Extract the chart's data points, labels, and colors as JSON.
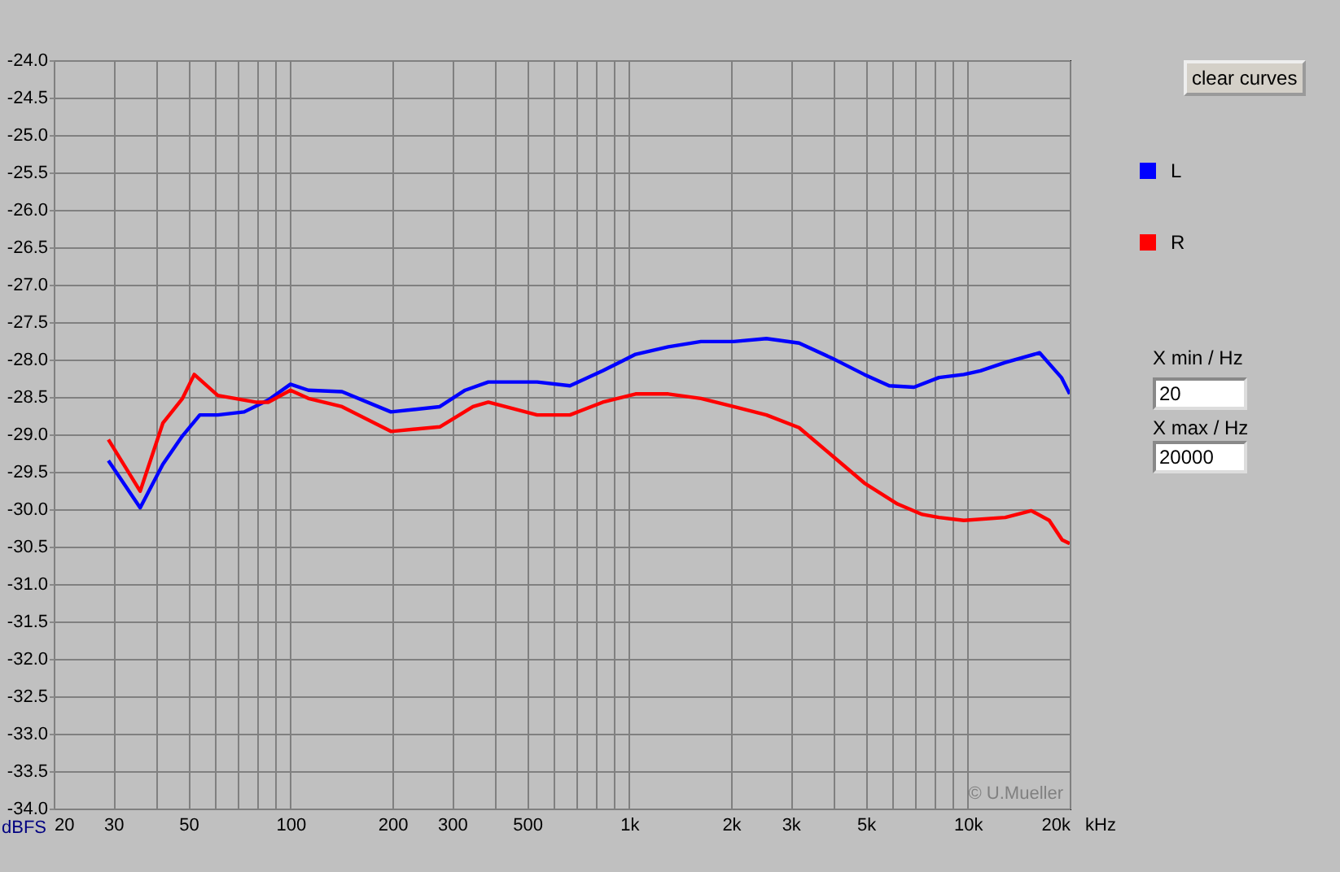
{
  "chart_data": {
    "type": "line",
    "ylabel": "dBFS",
    "log": "x",
    "grid": true,
    "legend": "right",
    "marker": "none",
    "line_style": "solid",
    "xlim": [
      20,
      20000
    ],
    "ylim": [
      -34,
      -24
    ],
    "xticks": [
      20,
      30,
      {
        "value": 40,
        "label": null
      },
      50,
      {
        "value": 60,
        "label": null
      },
      {
        "value": 70,
        "label": null
      },
      {
        "value": 80,
        "label": null
      },
      {
        "value": 90,
        "label": null
      },
      100,
      200,
      300,
      {
        "value": 400,
        "label": null
      },
      500,
      {
        "value": 600,
        "label": null
      },
      {
        "value": 700,
        "label": null
      },
      {
        "value": 800,
        "label": null
      },
      {
        "value": 900,
        "label": null
      },
      {
        "value": 1000,
        "label": "1k"
      },
      {
        "value": 2000,
        "label": "2k"
      },
      {
        "value": 3000,
        "label": "3k"
      },
      {
        "value": 4000,
        "label": null
      },
      {
        "value": 5000,
        "label": "5k"
      },
      {
        "value": 6000,
        "label": null
      },
      {
        "value": 7000,
        "label": null
      },
      {
        "value": 8000,
        "label": null
      },
      {
        "value": 9000,
        "label": null
      },
      {
        "value": 10000,
        "label": "10k"
      },
      {
        "value": 20000,
        "label": "20k"
      }
    ],
    "xlabel": "kHz",
    "yticks": [
      {
        "value": -24,
        "label": "-24.0"
      },
      {
        "value": -24.5,
        "label": "-24.5"
      },
      {
        "value": -25,
        "label": "-25.0"
      },
      {
        "value": -25.5,
        "label": "-25.5"
      },
      {
        "value": -26,
        "label": "-26.0"
      },
      {
        "value": -26.5,
        "label": "-26.5"
      },
      {
        "value": -27,
        "label": "-27.0"
      },
      {
        "value": -27.5,
        "label": "-27.5"
      },
      {
        "value": -28,
        "label": "-28.0"
      },
      {
        "value": -28.5,
        "label": "-28.5"
      },
      {
        "value": -29,
        "label": "-29.0"
      },
      {
        "value": -29.5,
        "label": "-29.5"
      },
      {
        "value": -30,
        "label": "-30.0"
      },
      {
        "value": -30.5,
        "label": "-30.5"
      },
      {
        "value": -31,
        "label": "-31.0"
      },
      {
        "value": -31.5,
        "label": "-31.5"
      },
      {
        "value": -32,
        "label": "-32.0"
      },
      {
        "value": -32.5,
        "label": "-32.5"
      },
      {
        "value": -33,
        "label": "-33.0"
      },
      {
        "value": -33.5,
        "label": "-33.5"
      },
      {
        "value": -34,
        "label": "-34.0"
      }
    ],
    "series": [
      {
        "name": "L",
        "color": "#0000ff",
        "x": [
          29,
          36,
          42,
          48,
          54,
          61,
          73,
          86,
          100,
          113,
          142,
          198,
          276,
          328,
          384,
          535,
          669,
          836,
          1045,
          1305,
          1630,
          2036,
          2543,
          3176,
          3966,
          4950,
          5862,
          6940,
          8220,
          9730,
          10900,
          12900,
          16300,
          18900,
          20000
        ],
        "values": [
          -29.35,
          -29.98,
          -29.4,
          -29.02,
          -28.74,
          -28.74,
          -28.7,
          -28.54,
          -28.33,
          -28.41,
          -28.43,
          -28.7,
          -28.63,
          -28.41,
          -28.3,
          -28.3,
          -28.35,
          -28.15,
          -27.93,
          -27.83,
          -27.76,
          -27.76,
          -27.72,
          -27.78,
          -27.98,
          -28.2,
          -28.35,
          -28.37,
          -28.24,
          -28.2,
          -28.15,
          -28.04,
          -27.91,
          -28.24,
          -28.46
        ]
      },
      {
        "name": "R",
        "color": "#ff0000",
        "x": [
          29,
          36,
          42,
          48,
          52,
          61,
          79,
          86,
          100,
          113,
          142,
          198,
          276,
          346,
          384,
          535,
          669,
          836,
          1045,
          1305,
          1630,
          2036,
          2543,
          3176,
          3966,
          4950,
          6200,
          7340,
          8220,
          9730,
          12900,
          15400,
          17400,
          19000,
          20000
        ],
        "values": [
          -29.07,
          -29.76,
          -28.85,
          -28.52,
          -28.2,
          -28.48,
          -28.57,
          -28.57,
          -28.41,
          -28.52,
          -28.63,
          -28.96,
          -28.9,
          -28.63,
          -28.57,
          -28.74,
          -28.74,
          -28.57,
          -28.46,
          -28.46,
          -28.52,
          -28.63,
          -28.74,
          -28.91,
          -29.28,
          -29.65,
          -29.93,
          -30.07,
          -30.11,
          -30.15,
          -30.11,
          -30.02,
          -30.15,
          -30.41,
          -30.46
        ]
      }
    ],
    "annotations": [
      "© U.Mueller",
      "clear curves",
      "X min / Hz",
      "20",
      "X max / Hz",
      "20000"
    ]
  }
}
